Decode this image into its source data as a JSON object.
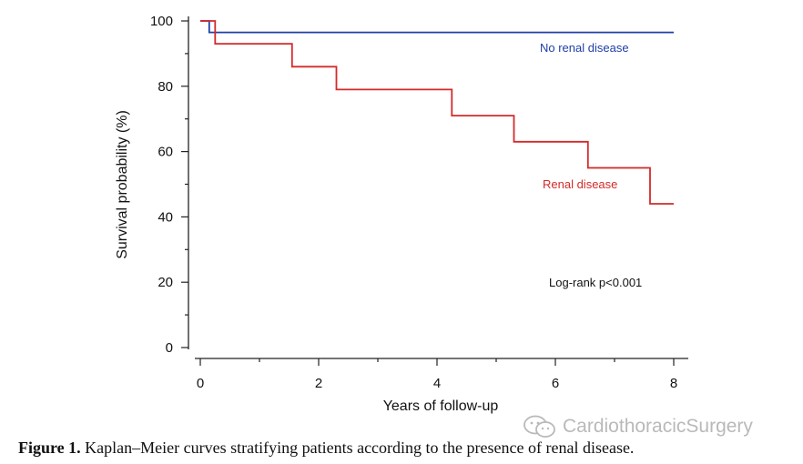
{
  "chart_data": {
    "type": "line",
    "style": "step",
    "title": "",
    "xlabel": "Years of follow-up",
    "ylabel": "Survival probability (%)",
    "xlim": [
      0,
      8
    ],
    "ylim": [
      0,
      100
    ],
    "xticks": [
      0,
      2,
      4,
      6,
      8
    ],
    "yticks": [
      0,
      20,
      40,
      60,
      80,
      100
    ],
    "grid": false,
    "series": [
      {
        "name": "No renal disease",
        "color": "#1f3fa8",
        "x": [
          0,
          0.15,
          0.15,
          8
        ],
        "y": [
          100,
          100,
          96.5,
          96.5
        ]
      },
      {
        "name": "Renal disease",
        "color": "#d42a2a",
        "x": [
          0,
          0.25,
          0.25,
          1.55,
          1.55,
          2.3,
          2.3,
          4.25,
          4.25,
          5.3,
          5.3,
          6.55,
          6.55,
          7.6,
          7.6,
          8
        ],
        "y": [
          100,
          100,
          93,
          93,
          86,
          86,
          79,
          79,
          71,
          71,
          63,
          63,
          55,
          55,
          44,
          44
        ]
      }
    ],
    "annotations": {
      "no_renal_label": "No renal disease",
      "renal_label": "Renal disease",
      "logrank": "Log-rank p<0.001"
    }
  },
  "caption": {
    "label": "Figure 1.",
    "text": "Kaplan–Meier curves stratifying patients according to the presence of renal disease."
  },
  "watermark": {
    "text": "CardiothoracicSurgery",
    "icon": "wechat-icon"
  }
}
